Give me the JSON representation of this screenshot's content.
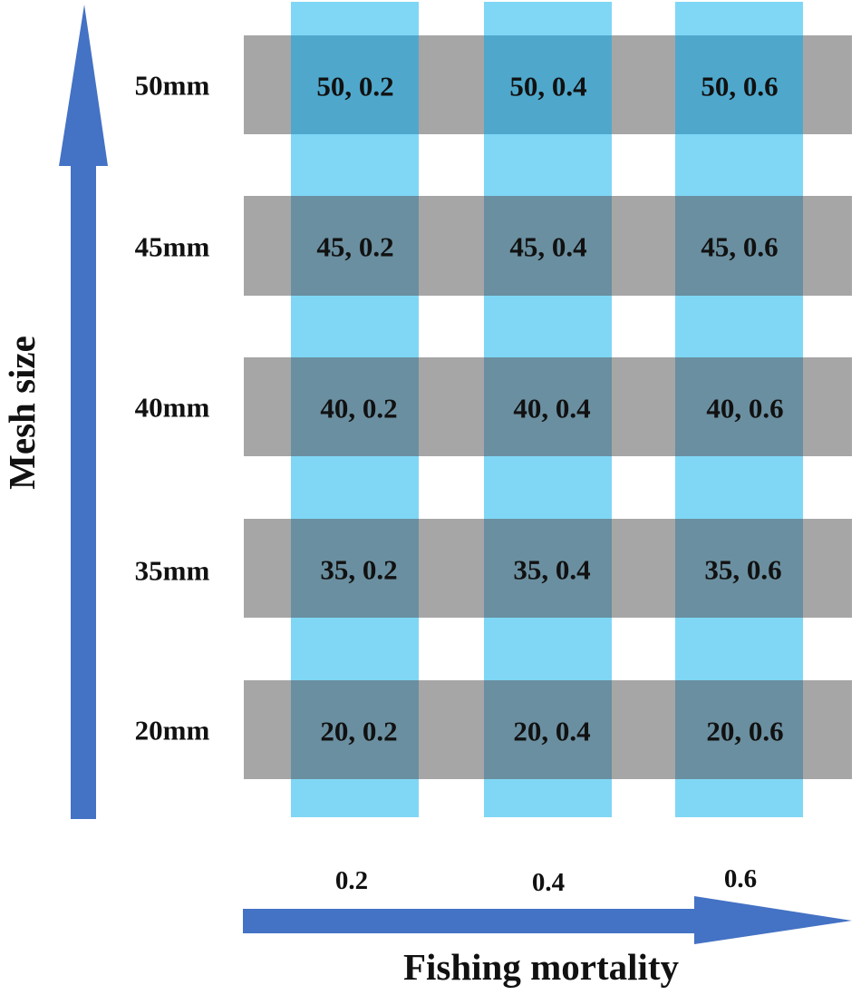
{
  "axes": {
    "y_title": "Mesh size",
    "x_title": "Fishing mortality"
  },
  "rows": [
    {
      "label": "50mm",
      "cells": [
        "50, 0.2",
        "50, 0.4",
        "50, 0.6"
      ]
    },
    {
      "label": "45mm",
      "cells": [
        "45, 0.2",
        "45, 0.4",
        "45, 0.6"
      ]
    },
    {
      "label": "40mm",
      "cells": [
        "40, 0.2",
        "40, 0.4",
        "40, 0.6"
      ]
    },
    {
      "label": "35mm",
      "cells": [
        "35, 0.2",
        "35, 0.4",
        "35, 0.6"
      ]
    },
    {
      "label": "20mm",
      "cells": [
        "20, 0.2",
        "20, 0.4",
        "20, 0.6"
      ]
    }
  ],
  "columns": [
    {
      "label": "0.2"
    },
    {
      "label": "0.4"
    },
    {
      "label": "0.6"
    }
  ],
  "colors": {
    "row_band": "#a6a6a6",
    "column_band": "#7fd7f5",
    "overlap_top": "#4fa8cc",
    "overlap": "#6a8fa0",
    "arrow": "#4472c4",
    "text": "#111111"
  }
}
